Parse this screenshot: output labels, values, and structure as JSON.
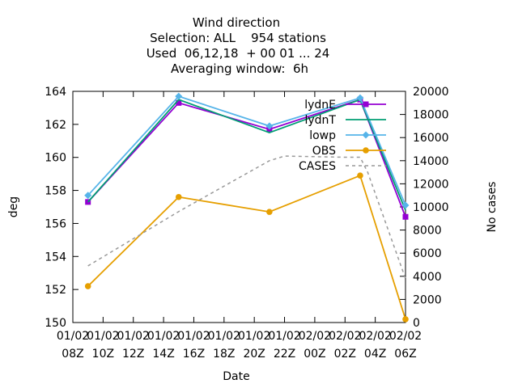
{
  "chart_data": {
    "type": "line",
    "title_lines": [
      "Wind direction",
      "Selection: ALL    954 stations",
      "Used  06,12,18  + 00 01 ... 24",
      "Averaging window:  6h"
    ],
    "xlabel": "Date",
    "ylabel": "deg",
    "y2label": "No cases",
    "x_tick_labels": [
      {
        "top": "01/02",
        "bottom": "08Z"
      },
      {
        "top": "01/02",
        "bottom": "10Z"
      },
      {
        "top": "01/02",
        "bottom": "12Z"
      },
      {
        "top": "01/02",
        "bottom": "14Z"
      },
      {
        "top": "01/02",
        "bottom": "16Z"
      },
      {
        "top": "01/02",
        "bottom": "18Z"
      },
      {
        "top": "01/02",
        "bottom": "20Z"
      },
      {
        "top": "01/02",
        "bottom": "22Z"
      },
      {
        "top": "02/02",
        "bottom": "00Z"
      },
      {
        "top": "02/02",
        "bottom": "02Z"
      },
      {
        "top": "02/02",
        "bottom": "04Z"
      },
      {
        "top": "02/02",
        "bottom": "06Z"
      }
    ],
    "x_hours": [
      8,
      10,
      12,
      14,
      16,
      18,
      20,
      22,
      24,
      26,
      28,
      30
    ],
    "xlim_hours": [
      8,
      30
    ],
    "ylim": [
      150,
      164
    ],
    "y_ticks": [
      150,
      152,
      154,
      156,
      158,
      160,
      162,
      164
    ],
    "y2lim": [
      0,
      20000
    ],
    "y2_ticks": [
      0,
      2000,
      4000,
      6000,
      8000,
      10000,
      12000,
      14000,
      16000,
      18000,
      20000
    ],
    "legend_position": "top-right",
    "series": [
      {
        "name": "lydnE",
        "color": "#9400d3",
        "marker": "square",
        "axis": "y1",
        "x": [
          9,
          15,
          21,
          27,
          30
        ],
        "values": [
          157.3,
          163.3,
          161.7,
          163.5,
          156.4
        ]
      },
      {
        "name": "lydnT",
        "color": "#009e73",
        "marker": "none",
        "axis": "y1",
        "x": [
          9,
          15,
          21,
          27,
          30
        ],
        "values": [
          157.3,
          163.5,
          161.5,
          163.5,
          156.8
        ]
      },
      {
        "name": "lowp",
        "color": "#56b4e9",
        "marker": "diamond",
        "axis": "y1",
        "x": [
          9,
          15,
          21,
          27,
          30
        ],
        "values": [
          157.7,
          163.7,
          161.9,
          163.6,
          157.1
        ]
      },
      {
        "name": "OBS",
        "color": "#e69f00",
        "marker": "circle",
        "axis": "y1",
        "x": [
          9,
          15,
          21,
          27,
          30
        ],
        "values": [
          152.2,
          157.6,
          156.7,
          158.9,
          150.2
        ]
      },
      {
        "name": "CASES",
        "color": "#999999",
        "marker": "none",
        "dashed": true,
        "axis": "y2",
        "x": [
          9,
          15,
          21,
          22,
          26,
          27,
          27.5,
          30
        ],
        "values": [
          4900,
          9600,
          14000,
          14400,
          14300,
          14300,
          13000,
          3800
        ]
      }
    ]
  }
}
